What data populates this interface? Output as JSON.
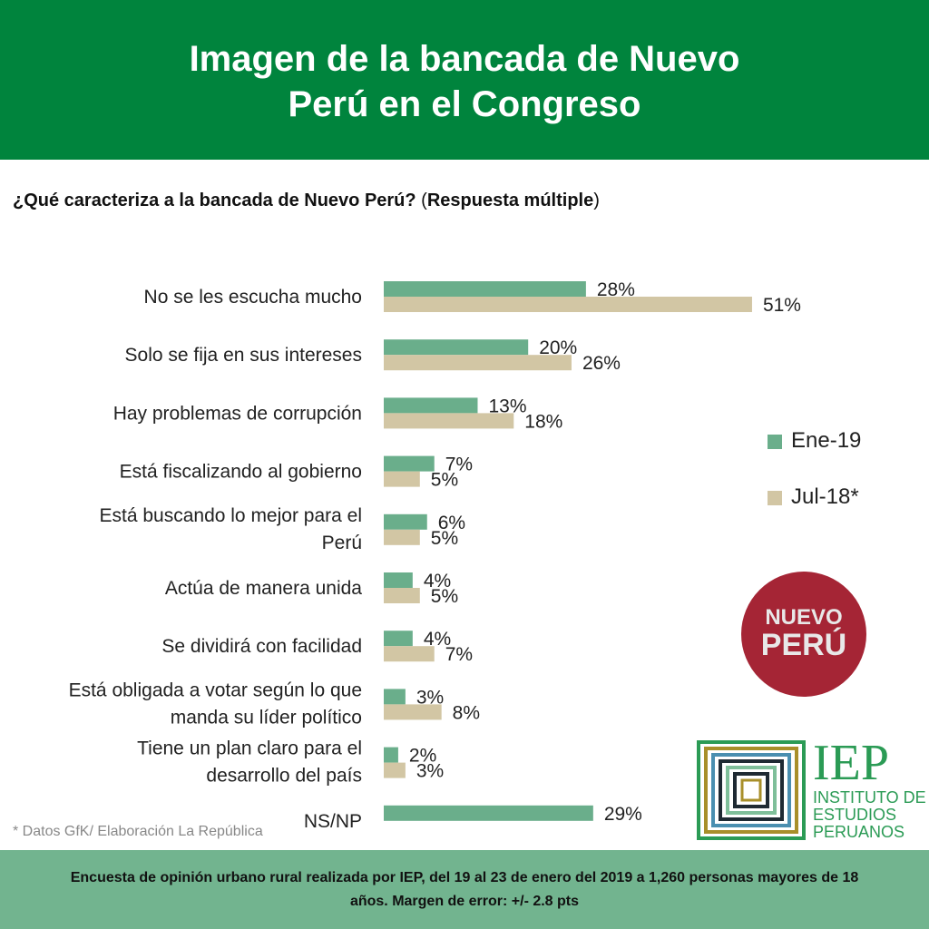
{
  "title_line1": "Imagen de la bancada de Nuevo",
  "title_line2": "Perú en el Congreso",
  "question_bold": "¿Qué caracteriza a la bancada de Nuevo Perú?",
  "question_paren_open": " (",
  "question_bold2": "Respuesta múltiple",
  "question_paren_close": ")",
  "colors": {
    "header": "#00843d",
    "ene19": "#6aae8b",
    "jul18": "#d2c6a4",
    "footer": "#72b48f",
    "nuevo_peru": "#a52535"
  },
  "chart_data": {
    "type": "bar",
    "orientation": "horizontal",
    "categories": [
      [
        "No se les escucha mucho"
      ],
      [
        "Solo se fija en sus intereses"
      ],
      [
        "Hay problemas de corrupción"
      ],
      [
        "Está fiscalizando al gobierno"
      ],
      [
        "Está buscando lo mejor para el",
        "Perú"
      ],
      [
        "Actúa de manera unida"
      ],
      [
        "Se dividirá con facilidad"
      ],
      [
        "Está obligada a votar según lo que",
        "manda su líder político"
      ],
      [
        "Tiene un plan claro para el",
        "desarrollo del país"
      ],
      [
        "NS/NP"
      ]
    ],
    "series": [
      {
        "name": "Ene-19",
        "values": [
          28,
          20,
          13,
          7,
          6,
          4,
          4,
          3,
          2,
          29
        ],
        "labels": [
          "28%",
          "20%",
          "13%",
          "7%",
          "6%",
          "4%",
          "4%",
          "3%",
          "2%",
          "29%"
        ]
      },
      {
        "name": "Jul-18*",
        "values": [
          51,
          26,
          18,
          5,
          5,
          5,
          7,
          8,
          3,
          null
        ],
        "labels": [
          "51%",
          "26%",
          "18%",
          "5%",
          "5%",
          "5%",
          "7%",
          "8%",
          "3%",
          ""
        ]
      }
    ],
    "legend_position": "right",
    "unit": "%"
  },
  "note": "* Datos GfK/ Elaboración La República",
  "footer_line1": "Encuesta de opinión urbano rural realizada por IEP, del 19 al 23 de enero del 2019 a 1,260 personas mayores de 18",
  "footer_line2": "años. Margen de error: +/- 2.8 pts",
  "logo_nuevo_peru": {
    "line1": "NUEVO",
    "line2": "PERÚ"
  },
  "logo_iep": {
    "acronym": "IEP",
    "line1": "INSTITUTO DE",
    "line2": "ESTUDIOS",
    "line3": "PERUANOS"
  }
}
